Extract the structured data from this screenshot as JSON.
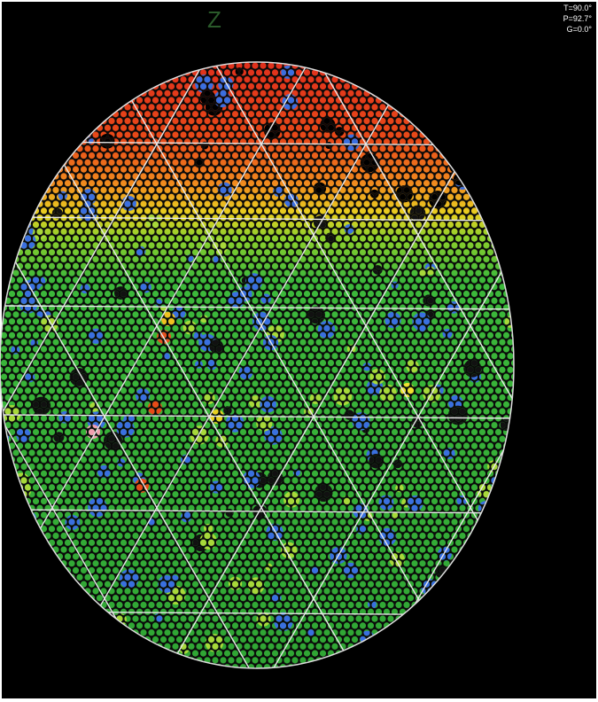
{
  "axis_label": "Z",
  "overlay": {
    "theta": "T=90.0°",
    "phi": "P=92.7°",
    "gamma": "G=0.0°"
  }
}
